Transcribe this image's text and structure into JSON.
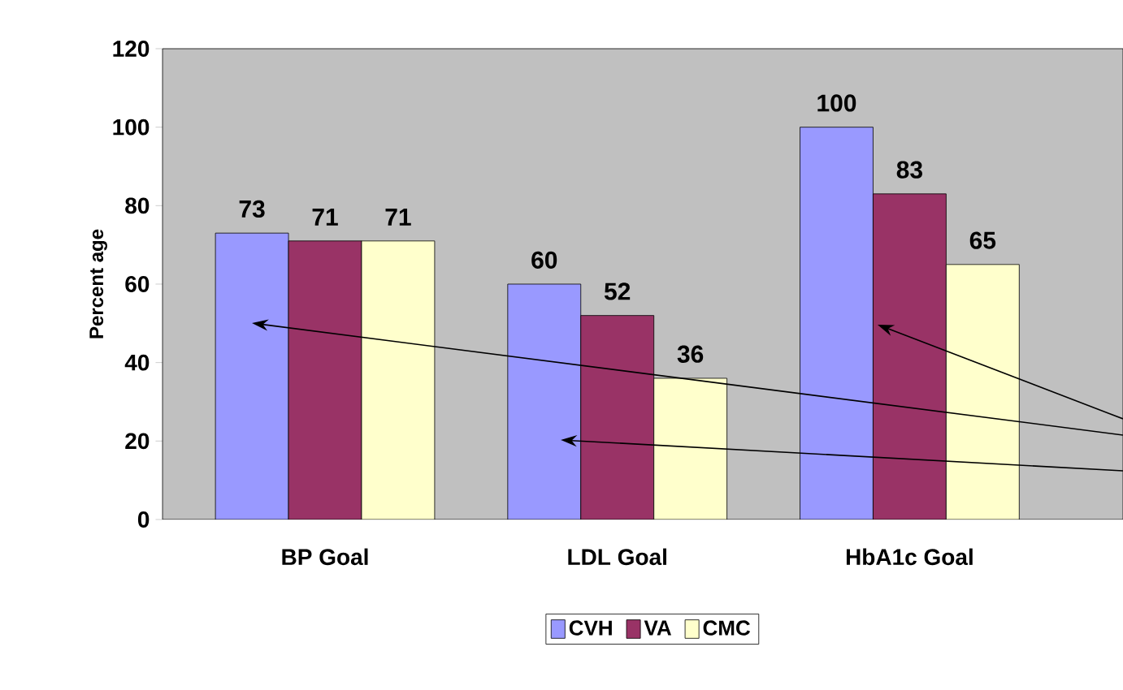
{
  "chart_data": {
    "type": "bar",
    "ylabel": "Percent age",
    "categories": [
      "BP Goal",
      "LDL Goal",
      "HbA1c Goal"
    ],
    "series": [
      {
        "name": "CVH",
        "color": "#9999ff",
        "values": [
          73,
          60,
          100
        ]
      },
      {
        "name": "VA",
        "color": "#993366",
        "values": [
          71,
          52,
          83
        ]
      },
      {
        "name": "CMC",
        "color": "#ffffcc",
        "values": [
          71,
          36,
          65
        ]
      }
    ],
    "ylim": [
      0,
      120
    ],
    "yticks": [
      0,
      20,
      40,
      60,
      80,
      100,
      120
    ],
    "data_labels": true,
    "legend": "bottom",
    "grid": false
  }
}
